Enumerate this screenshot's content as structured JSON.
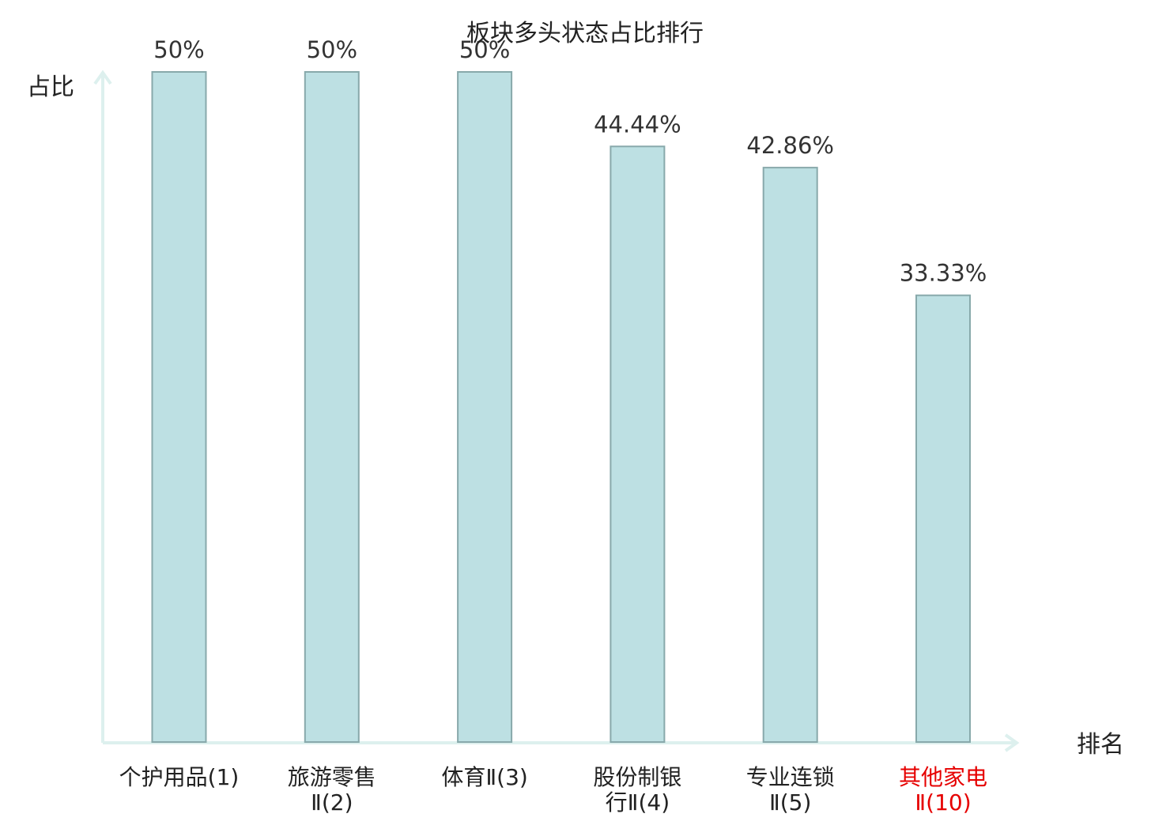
{
  "chart_data": {
    "type": "bar",
    "title": "板块多头状态占比排行",
    "xlabel": "排名",
    "ylabel": "占比",
    "ylim": [
      0,
      50
    ],
    "categories": [
      [
        "个护用品(1)"
      ],
      [
        "旅游零售",
        "Ⅱ(2)"
      ],
      [
        "体育Ⅱ(3)"
      ],
      [
        "股份制银",
        "行Ⅱ(4)"
      ],
      [
        "专业连锁",
        "Ⅱ(5)"
      ],
      [
        "其他家电",
        "Ⅱ(10)"
      ]
    ],
    "values": [
      50,
      50,
      50,
      44.44,
      42.86,
      33.33
    ],
    "value_labels": [
      "50%",
      "50%",
      "50%",
      "44.44%",
      "42.86%",
      "33.33%"
    ],
    "highlight_index": 5,
    "grid": false,
    "legend": "none"
  },
  "colors": {
    "bar_fill": "#bde0e3",
    "bar_stroke": "#88a9ab",
    "axis": "#ddf0ee",
    "text": "#222222",
    "value_text": "#333333",
    "highlight": "#e60000"
  }
}
